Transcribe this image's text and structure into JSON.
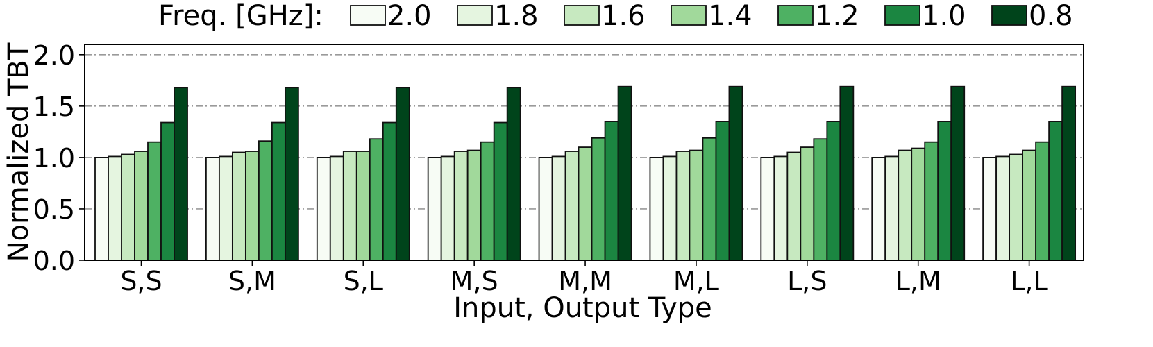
{
  "chart_data": {
    "type": "bar",
    "title": "",
    "xlabel": "Input, Output Type",
    "ylabel": "Normalized TBT",
    "ylim": [
      0,
      2.1
    ],
    "yticks": [
      "0.0",
      "0.5",
      "1.0",
      "1.5",
      "2.0"
    ],
    "grid": "horizontal dash-dot",
    "legend": {
      "title": "Freq. [GHz]:",
      "placement": "top"
    },
    "categories": [
      "S,S",
      "S,M",
      "S,L",
      "M,S",
      "M,M",
      "M,L",
      "L,S",
      "L,M",
      "L,L"
    ],
    "series": [
      {
        "name": "2.0",
        "color": "#f7fcf5",
        "values": [
          1.0,
          1.0,
          1.0,
          1.0,
          1.0,
          1.0,
          1.0,
          1.0,
          1.0
        ]
      },
      {
        "name": "1.8",
        "color": "#e5f5e0",
        "values": [
          1.01,
          1.01,
          1.01,
          1.01,
          1.01,
          1.01,
          1.01,
          1.01,
          1.01
        ]
      },
      {
        "name": "1.6",
        "color": "#c7e9c0",
        "values": [
          1.03,
          1.05,
          1.06,
          1.06,
          1.06,
          1.06,
          1.05,
          1.07,
          1.03
        ]
      },
      {
        "name": "1.4",
        "color": "#a1d99b",
        "values": [
          1.06,
          1.06,
          1.06,
          1.07,
          1.1,
          1.07,
          1.1,
          1.09,
          1.07
        ]
      },
      {
        "name": "1.2",
        "color": "#4eb163",
        "values": [
          1.15,
          1.16,
          1.18,
          1.15,
          1.19,
          1.19,
          1.18,
          1.15,
          1.15
        ]
      },
      {
        "name": "1.0",
        "color": "#1b8641",
        "values": [
          1.34,
          1.34,
          1.34,
          1.34,
          1.35,
          1.35,
          1.35,
          1.35,
          1.35
        ]
      },
      {
        "name": "0.8",
        "color": "#00441b",
        "values": [
          1.68,
          1.68,
          1.68,
          1.68,
          1.69,
          1.69,
          1.69,
          1.69,
          1.69
        ]
      }
    ]
  }
}
